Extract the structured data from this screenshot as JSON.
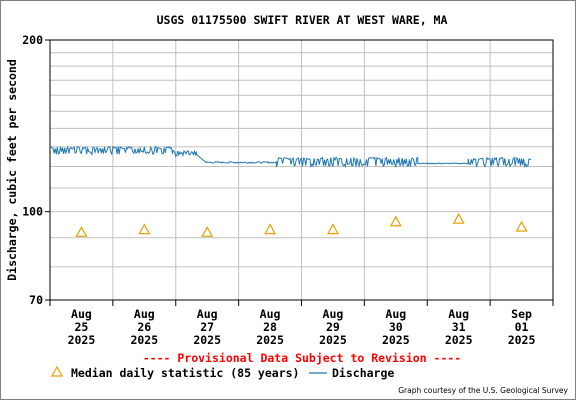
{
  "chart_data": {
    "type": "line",
    "title": "USGS 01175500 SWIFT RIVER AT WEST WARE, MA",
    "ylabel": "Discharge, cubic feet per second",
    "xlabel": "",
    "y_scale": "log",
    "ylim": [
      70,
      200
    ],
    "y_tick_labels": [
      "200",
      "100",
      "70"
    ],
    "y_ticks": [
      200,
      100,
      70
    ],
    "y_grid_values": [
      70,
      80,
      90,
      100,
      110,
      120,
      130,
      140,
      150,
      160,
      170,
      180,
      190,
      200
    ],
    "x_range": [
      "2025-08-24 12:00",
      "2025-09-01 12:00"
    ],
    "x_ticks": [
      {
        "month": "Aug",
        "day": "25",
        "year": "2025",
        "day_index": 1
      },
      {
        "month": "Aug",
        "day": "26",
        "year": "2025",
        "day_index": 2
      },
      {
        "month": "Aug",
        "day": "27",
        "year": "2025",
        "day_index": 3
      },
      {
        "month": "Aug",
        "day": "28",
        "year": "2025",
        "day_index": 4
      },
      {
        "month": "Aug",
        "day": "29",
        "year": "2025",
        "day_index": 5
      },
      {
        "month": "Aug",
        "day": "30",
        "year": "2025",
        "day_index": 6
      },
      {
        "month": "Aug",
        "day": "31",
        "year": "2025",
        "day_index": 7
      },
      {
        "month": "Sep",
        "day": "01",
        "year": "2025",
        "day_index": 8
      }
    ],
    "grid": true,
    "series": [
      {
        "name": "Discharge",
        "color": "#1f78b4",
        "segments": [
          {
            "from": 0.0,
            "to": 1.95,
            "low": 126,
            "high": 130,
            "pattern": "fluctuating"
          },
          {
            "from": 1.95,
            "to": 2.33,
            "low": 125,
            "high": 128,
            "pattern": "fluctuating"
          },
          {
            "from": 2.33,
            "to": 2.48,
            "low": 122,
            "high": 126,
            "pattern": "declining"
          },
          {
            "from": 2.48,
            "to": 3.6,
            "low": 121,
            "high": 123,
            "pattern": "flat"
          },
          {
            "from": 3.6,
            "to": 5.85,
            "low": 120,
            "high": 124.5,
            "pattern": "fluctuating"
          },
          {
            "from": 5.85,
            "to": 6.65,
            "low": 121,
            "high": 122,
            "pattern": "flat"
          },
          {
            "from": 6.65,
            "to": 7.65,
            "low": 120,
            "high": 124.5,
            "pattern": "fluctuating"
          }
        ]
      },
      {
        "name": "Median daily statistic (85 years)",
        "marker": "triangle",
        "color": "#e8a000",
        "x": [
          0.5,
          1.5,
          2.5,
          3.5,
          4.5,
          5.5,
          6.5,
          7.5
        ],
        "values": [
          92,
          93,
          92,
          93,
          93,
          96,
          97,
          94
        ]
      }
    ]
  },
  "footer": {
    "provisional": "---- Provisional Data Subject to Revision ----",
    "legend_median": "Median daily statistic (85 years)",
    "legend_discharge": "Discharge",
    "credit": "Graph courtesy of the U.S. Geological Survey"
  },
  "colors": {
    "provisional": "#ff0000",
    "grid": "#c0c0c0",
    "axis": "#000000"
  }
}
